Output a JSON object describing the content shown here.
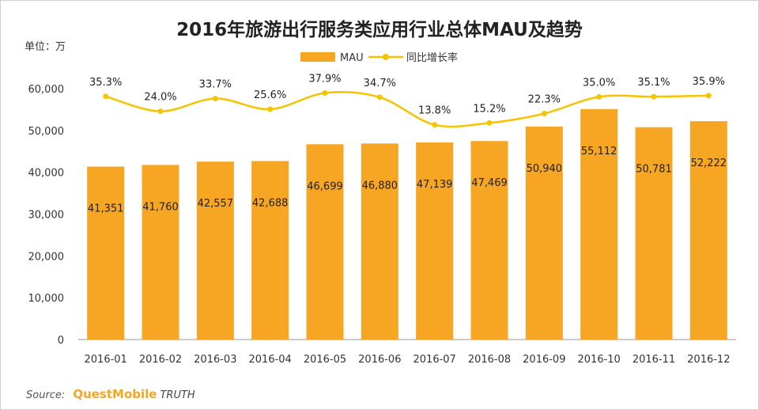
{
  "unit_label": "单位：万",
  "source": {
    "label": "Source:",
    "brand": "QuestMobile",
    "suffix": "TRUTH"
  },
  "chart_data": {
    "type": "bar",
    "title": "2016年旅游出行服务类应用行业总体MAU及趋势",
    "categories": [
      "2016-01",
      "2016-02",
      "2016-03",
      "2016-04",
      "2016-05",
      "2016-06",
      "2016-07",
      "2016-08",
      "2016-09",
      "2016-10",
      "2016-11",
      "2016-12"
    ],
    "series": [
      {
        "name": "MAU",
        "type": "bar",
        "color": "#f6a623",
        "values": [
          41351,
          41760,
          42557,
          42688,
          46699,
          46880,
          47139,
          47469,
          50940,
          55112,
          50781,
          52222
        ],
        "labels": [
          "41,351",
          "41,760",
          "42,557",
          "42,688",
          "46,699",
          "46,880",
          "47,139",
          "47,469",
          "50,940",
          "55,112",
          "50,781",
          "52,222"
        ]
      },
      {
        "name": "同比增长率",
        "type": "line",
        "color": "#f5c400",
        "values": [
          35.3,
          24.0,
          33.7,
          25.6,
          37.9,
          34.7,
          13.8,
          15.2,
          22.3,
          35.0,
          35.1,
          35.9
        ],
        "labels": [
          "35.3%",
          "24.0%",
          "33.7%",
          "25.6%",
          "37.9%",
          "34.7%",
          "13.8%",
          "15.2%",
          "22.3%",
          "35.0%",
          "35.1%",
          "35.9%"
        ]
      }
    ],
    "ylim": [
      0,
      60000
    ],
    "yticks": [
      0,
      10000,
      20000,
      30000,
      40000,
      50000,
      60000
    ],
    "ytick_labels": [
      "0",
      "10,000",
      "20,000",
      "30,000",
      "40,000",
      "50,000",
      "60,000"
    ],
    "legend_position": "top-center",
    "grid": false
  }
}
